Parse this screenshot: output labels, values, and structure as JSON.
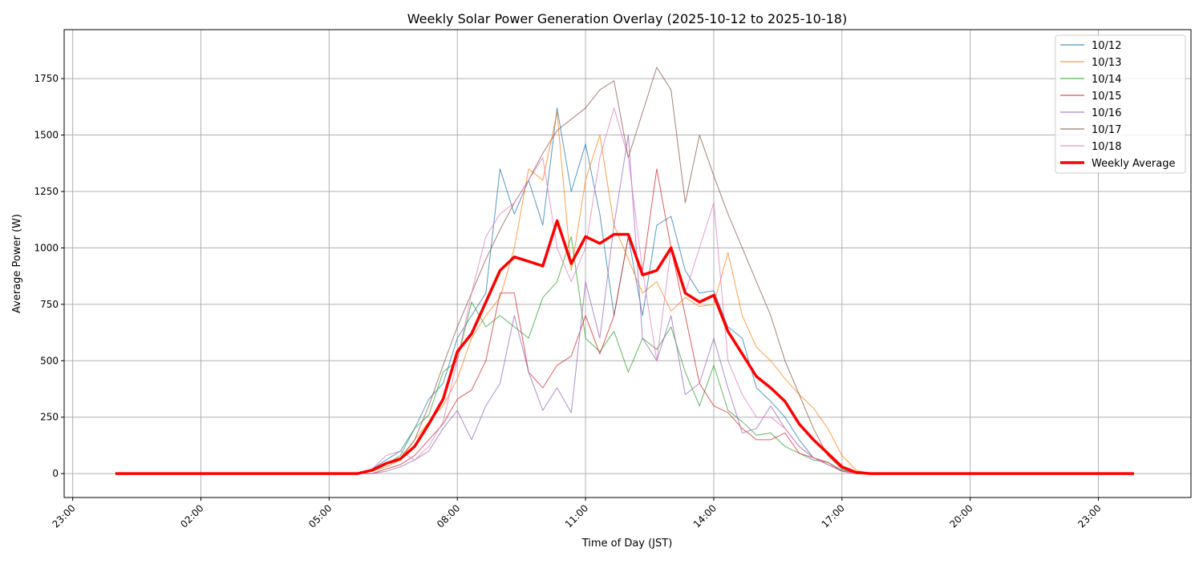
{
  "chart_data": {
    "type": "line",
    "title": "Weekly Solar Power Generation Overlay (2025-10-12 to 2025-10-18)",
    "xlabel": "Time of Day (JST)",
    "ylabel": "Average Power (W)",
    "xlim": [
      "22:48",
      "25:10"
    ],
    "ylim": [
      -106,
      1967
    ],
    "grid": true,
    "legend_placement": "top-right",
    "x_ticks": [
      {
        "label": "23:00",
        "time": "-01:00"
      },
      {
        "label": "02:00",
        "time": "02:00"
      },
      {
        "label": "05:00",
        "time": "05:00"
      },
      {
        "label": "08:00",
        "time": "08:00"
      },
      {
        "label": "11:00",
        "time": "11:00"
      },
      {
        "label": "14:00",
        "time": "14:00"
      },
      {
        "label": "17:00",
        "time": "17:00"
      },
      {
        "label": "20:00",
        "time": "20:00"
      },
      {
        "label": "23:00",
        "time": "23:00"
      }
    ],
    "y_ticks": [
      0,
      250,
      500,
      750,
      1000,
      1250,
      1500,
      1750
    ],
    "x": [
      "00:00",
      "05:40",
      "06:00",
      "06:20",
      "06:40",
      "07:00",
      "07:20",
      "07:40",
      "08:00",
      "08:20",
      "08:40",
      "09:00",
      "09:20",
      "09:40",
      "10:00",
      "10:20",
      "10:40",
      "11:00",
      "11:20",
      "11:40",
      "12:00",
      "12:20",
      "12:40",
      "13:00",
      "13:20",
      "13:40",
      "14:00",
      "14:20",
      "14:40",
      "15:00",
      "15:20",
      "15:40",
      "16:00",
      "16:20",
      "16:40",
      "17:00",
      "17:20",
      "17:40",
      "23:50"
    ],
    "series": [
      {
        "name": "10/12",
        "color": "#1f77b4",
        "values": [
          0,
          0,
          20,
          60,
          100,
          200,
          330,
          400,
          600,
          700,
          800,
          1350,
          1150,
          1300,
          1100,
          1620,
          1250,
          1460,
          1150,
          700,
          1050,
          700,
          1100,
          1140,
          900,
          800,
          810,
          650,
          600,
          380,
          320,
          250,
          150,
          70,
          40,
          10,
          0,
          0,
          0
        ]
      },
      {
        "name": "10/13",
        "color": "#ff7f0e",
        "values": [
          0,
          0,
          10,
          30,
          60,
          150,
          230,
          300,
          420,
          600,
          700,
          780,
          1000,
          1350,
          1300,
          1600,
          900,
          1300,
          1500,
          1100,
          950,
          800,
          850,
          720,
          780,
          740,
          750,
          980,
          700,
          560,
          500,
          420,
          350,
          290,
          200,
          80,
          15,
          0,
          0
        ]
      },
      {
        "name": "10/14",
        "color": "#2ca02c",
        "values": [
          0,
          0,
          10,
          40,
          80,
          200,
          260,
          450,
          500,
          760,
          650,
          700,
          650,
          600,
          780,
          850,
          1050,
          600,
          540,
          630,
          450,
          600,
          550,
          650,
          450,
          300,
          480,
          280,
          230,
          170,
          180,
          120,
          90,
          60,
          50,
          15,
          0,
          0,
          0
        ]
      },
      {
        "name": "10/15",
        "color": "#d62728",
        "values": [
          0,
          0,
          0,
          20,
          40,
          80,
          150,
          220,
          330,
          370,
          500,
          800,
          800,
          450,
          380,
          480,
          520,
          700,
          530,
          700,
          1050,
          900,
          1350,
          1000,
          700,
          400,
          300,
          270,
          200,
          150,
          150,
          180,
          90,
          70,
          50,
          10,
          0,
          0,
          0
        ]
      },
      {
        "name": "10/16",
        "color": "#9467bd",
        "values": [
          0,
          0,
          0,
          10,
          30,
          60,
          100,
          200,
          280,
          150,
          300,
          400,
          700,
          450,
          280,
          380,
          270,
          850,
          600,
          1100,
          1500,
          600,
          500,
          700,
          350,
          400,
          600,
          380,
          180,
          200,
          300,
          200,
          120,
          70,
          40,
          10,
          0,
          0,
          0
        ]
      },
      {
        "name": "10/17",
        "color": "#8c564b",
        "values": [
          0,
          0,
          10,
          40,
          70,
          150,
          300,
          480,
          650,
          800,
          950,
          1080,
          1200,
          1300,
          1420,
          1520,
          1570,
          1620,
          1700,
          1740,
          1400,
          1600,
          1800,
          1700,
          1200,
          1500,
          1320,
          1150,
          1000,
          850,
          700,
          500,
          350,
          200,
          80,
          20,
          0,
          0,
          0
        ]
      },
      {
        "name": "10/18",
        "color": "#e377c2",
        "values": [
          0,
          0,
          20,
          80,
          100,
          60,
          120,
          230,
          500,
          800,
          1050,
          1150,
          1200,
          1300,
          1400,
          1000,
          850,
          1000,
          1400,
          1620,
          1400,
          900,
          500,
          1000,
          800,
          1000,
          1200,
          500,
          350,
          250,
          250,
          200,
          120,
          70,
          40,
          10,
          0,
          0,
          0
        ]
      },
      {
        "name": "Weekly Average",
        "color": "#ff0000",
        "values": [
          0,
          0,
          15,
          45,
          65,
          120,
          220,
          330,
          540,
          620,
          760,
          900,
          960,
          940,
          920,
          1120,
          930,
          1050,
          1020,
          1060,
          1060,
          880,
          900,
          1000,
          800,
          760,
          790,
          630,
          530,
          430,
          380,
          320,
          220,
          150,
          90,
          30,
          5,
          0,
          0
        ]
      }
    ]
  }
}
